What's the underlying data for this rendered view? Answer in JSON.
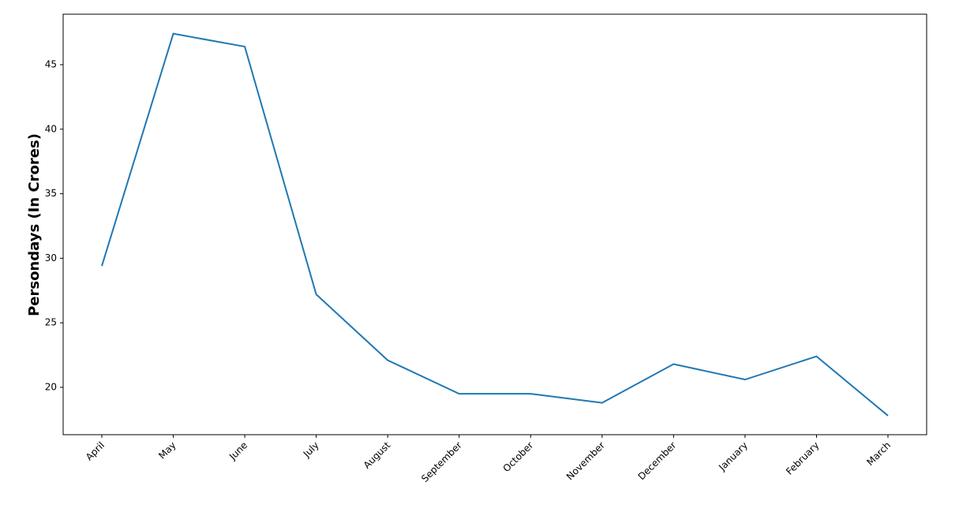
{
  "chart_data": {
    "type": "line",
    "y_label": "Persondays (In Crores)",
    "categories": [
      "April",
      "May",
      "June",
      "July",
      "August",
      "September",
      "October",
      "November",
      "December",
      "January",
      "February",
      "March"
    ],
    "values": [
      29.4,
      47.4,
      46.4,
      27.2,
      22.1,
      19.5,
      19.5,
      18.8,
      21.8,
      20.6,
      22.4,
      17.8
    ],
    "color": "#1f77b4",
    "ylim": [
      16.33,
      48.91
    ],
    "yticks": [
      20,
      25,
      30,
      35,
      40,
      45
    ],
    "grid": false
  }
}
